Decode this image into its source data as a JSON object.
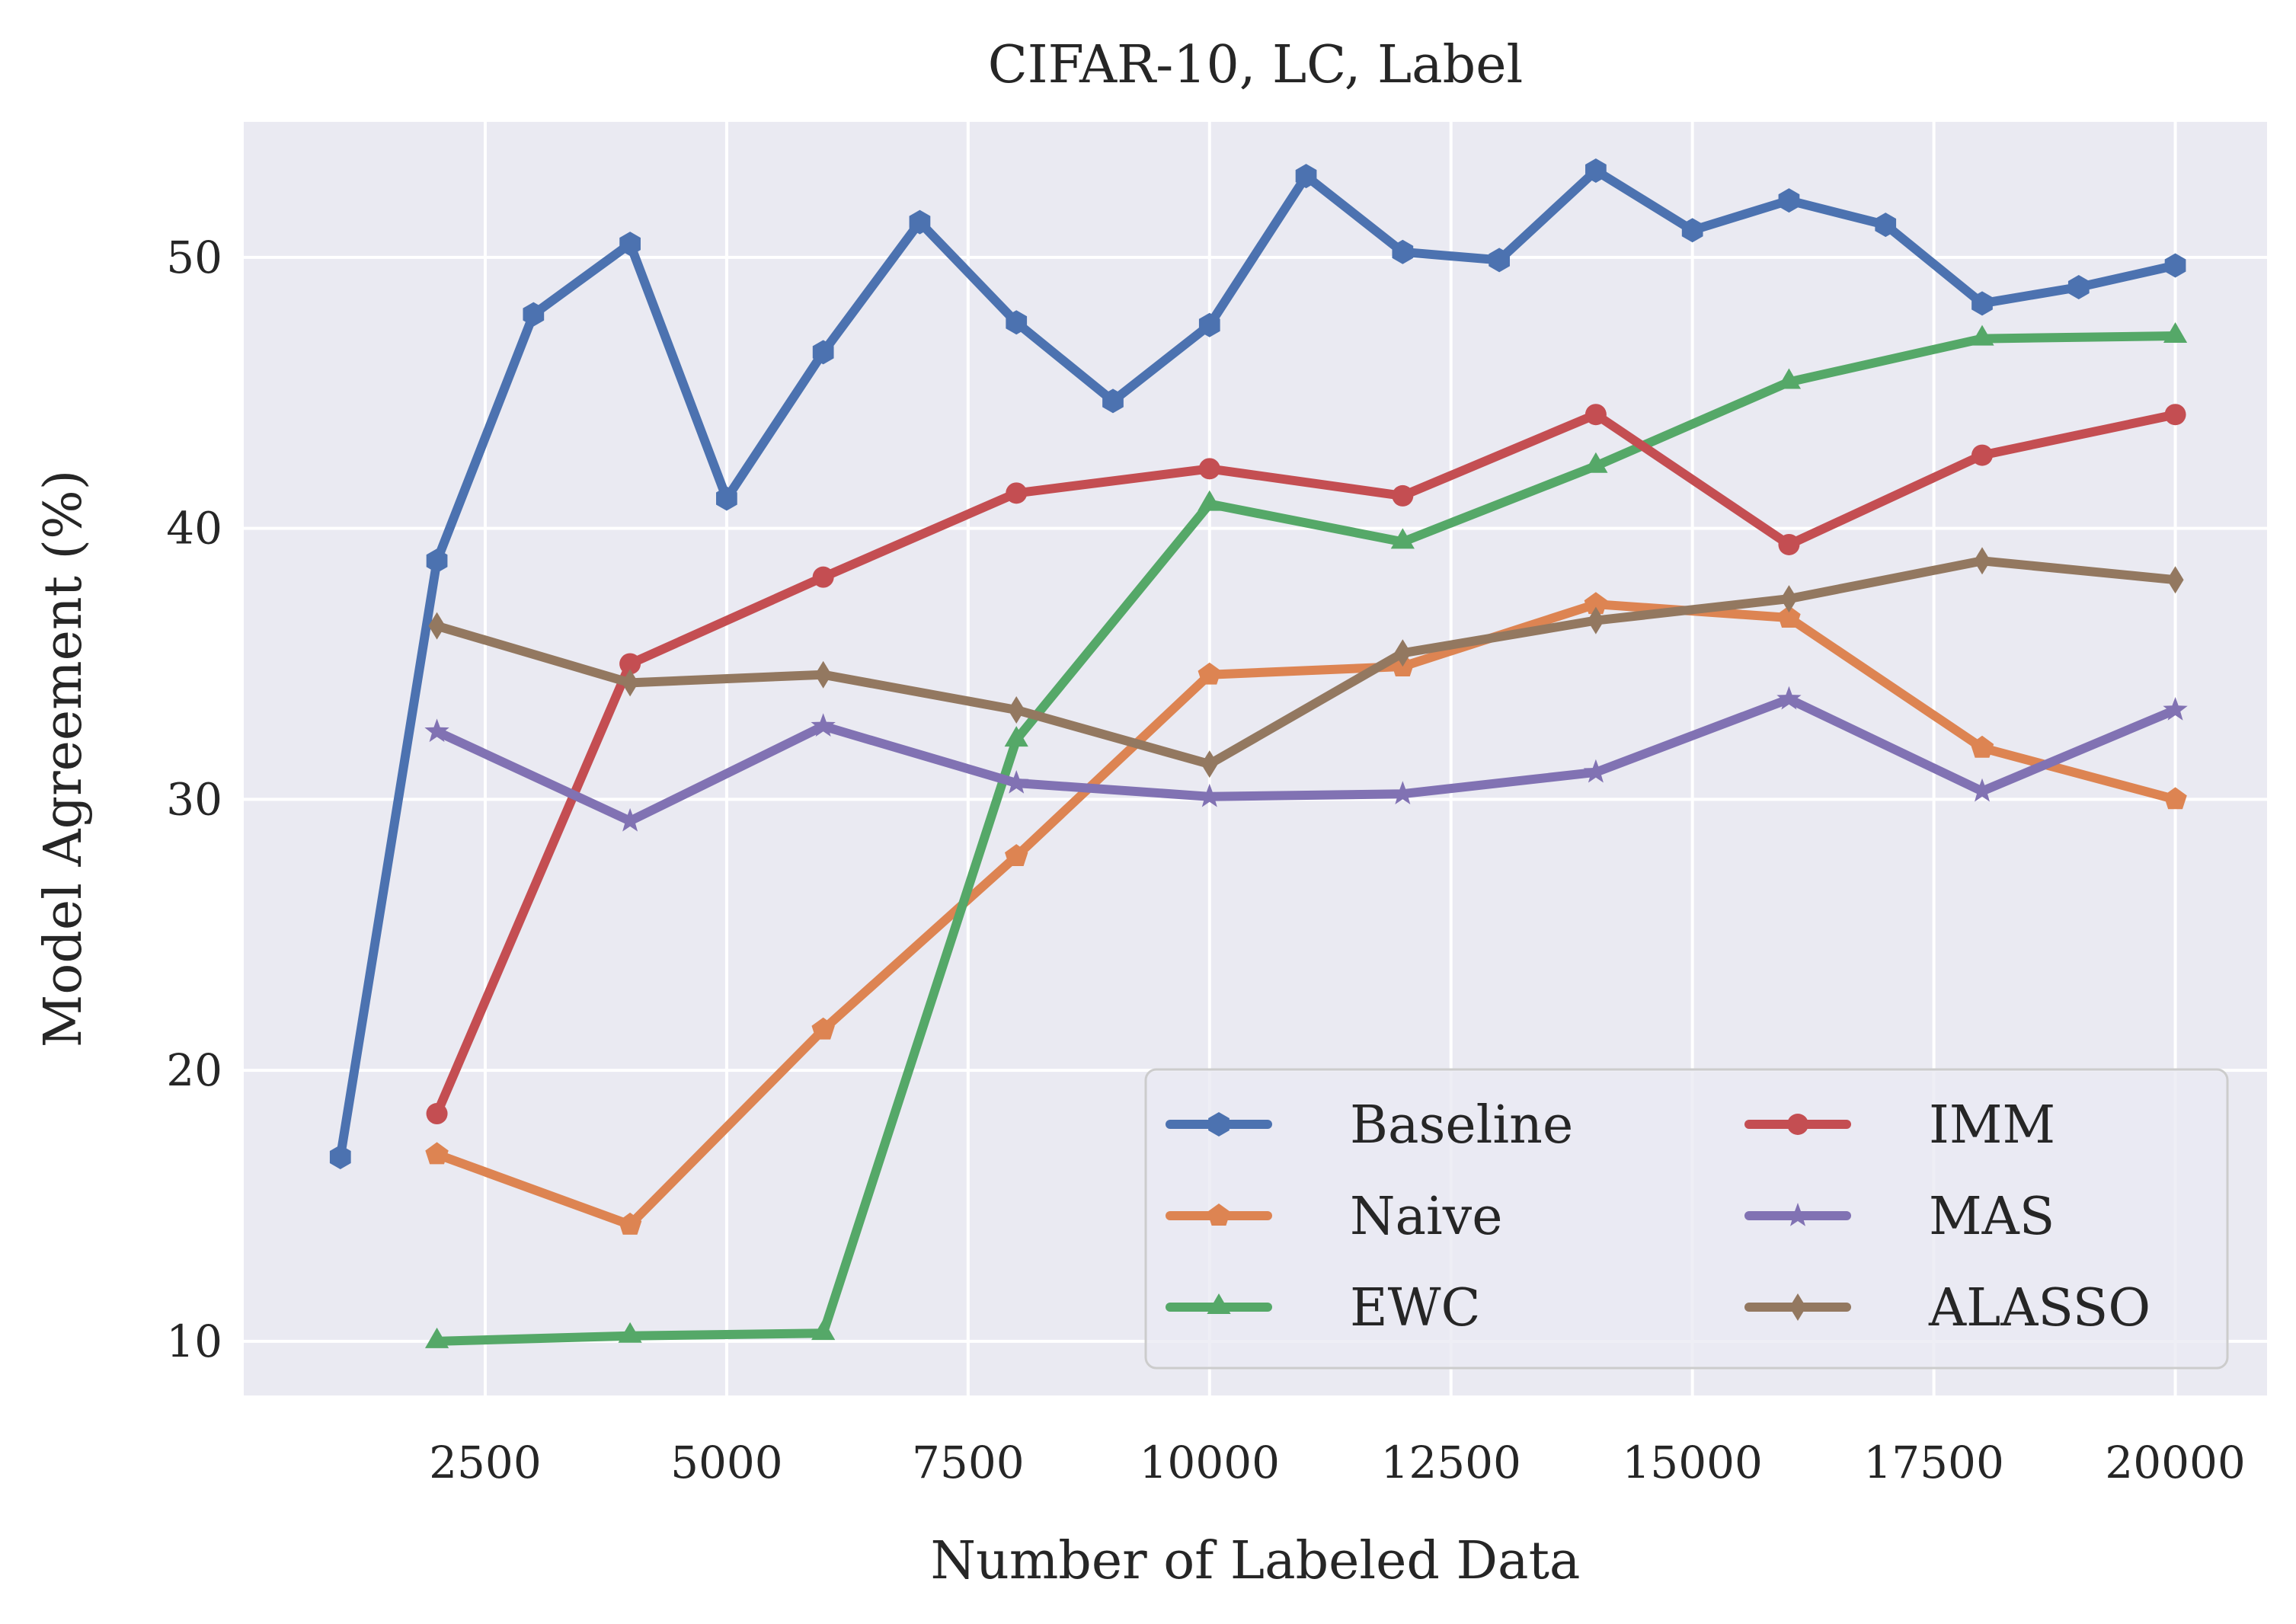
{
  "chart_data": {
    "type": "line",
    "title": "CIFAR-10, LC, Label",
    "xlabel": "Number of Labeled Data",
    "ylabel": "Model Agreement (%)",
    "xlim": [
      0,
      20950
    ],
    "ylim": [
      8,
      55
    ],
    "xticks": [
      2500,
      5000,
      7500,
      10000,
      12500,
      15000,
      17500,
      20000
    ],
    "yticks": [
      10,
      20,
      30,
      40,
      50
    ],
    "grid": true,
    "legend_position": "lower-right",
    "legend_columns": 2,
    "series": [
      {
        "name": "Baseline",
        "color": "#4C72B0",
        "marker": "hexagon",
        "x": [
          1000,
          2000,
          3000,
          4000,
          5000,
          6000,
          7000,
          8000,
          9000,
          10000,
          11000,
          12000,
          13000,
          14000,
          15000,
          16000,
          17000,
          18000,
          19000,
          20000
        ],
        "y": [
          16.8,
          38.8,
          47.9,
          50.5,
          41.1,
          46.5,
          51.3,
          47.6,
          44.7,
          47.5,
          53.0,
          50.2,
          49.9,
          53.2,
          51.0,
          52.1,
          51.2,
          48.3,
          48.9,
          49.7
        ]
      },
      {
        "name": "Naive",
        "color": "#DD8452",
        "marker": "pentagon",
        "x": [
          2000,
          4000,
          6000,
          8000,
          10000,
          12000,
          14000,
          16000,
          18000,
          20000
        ],
        "y": [
          16.9,
          14.3,
          21.5,
          27.9,
          34.6,
          34.9,
          37.2,
          36.7,
          31.9,
          30.0
        ]
      },
      {
        "name": "EWC",
        "color": "#55A868",
        "marker": "triangle",
        "x": [
          2000,
          4000,
          6000,
          8000,
          10000,
          12000,
          14000,
          16000,
          18000,
          20000
        ],
        "y": [
          10.0,
          10.2,
          10.3,
          32.2,
          40.9,
          39.5,
          42.3,
          45.4,
          47.0,
          47.1
        ]
      },
      {
        "name": "IMM",
        "color": "#C44E52",
        "marker": "circle",
        "x": [
          2000,
          4000,
          6000,
          8000,
          10000,
          12000,
          14000,
          16000,
          18000,
          20000
        ],
        "y": [
          18.4,
          35.0,
          38.2,
          41.3,
          42.2,
          41.2,
          44.2,
          39.4,
          42.7,
          44.2
        ]
      },
      {
        "name": "MAS",
        "color": "#8172B3",
        "marker": "star",
        "x": [
          2000,
          4000,
          6000,
          8000,
          10000,
          12000,
          14000,
          16000,
          18000,
          20000
        ],
        "y": [
          32.5,
          29.2,
          32.7,
          30.6,
          30.1,
          30.2,
          31.0,
          33.7,
          30.3,
          33.3
        ]
      },
      {
        "name": "ALASSO",
        "color": "#937860",
        "marker": "diamond",
        "x": [
          2000,
          4000,
          6000,
          8000,
          10000,
          12000,
          14000,
          16000,
          18000,
          20000
        ],
        "y": [
          36.4,
          34.3,
          34.6,
          33.3,
          31.3,
          35.4,
          36.6,
          37.4,
          38.8,
          38.1
        ]
      }
    ]
  }
}
